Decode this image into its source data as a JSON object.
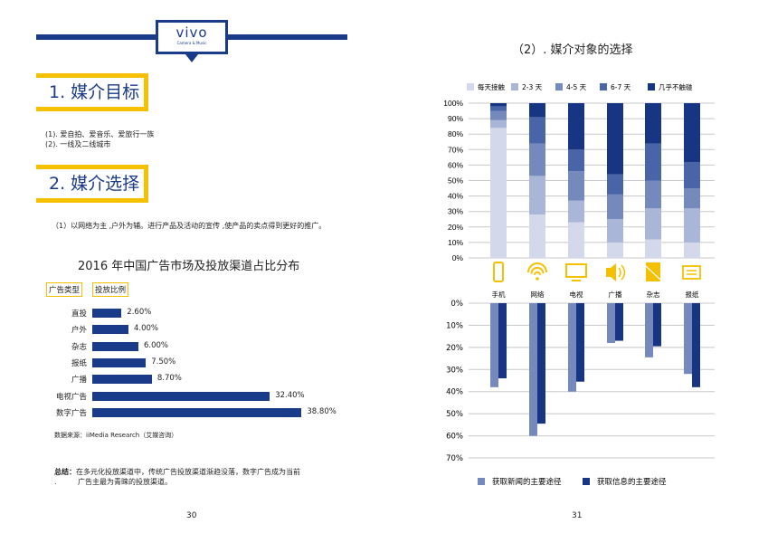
{
  "logo": {
    "brand": "vivo",
    "tagline": "Camera & Music"
  },
  "left": {
    "section1": "1. 媒介目标",
    "targets": [
      "(1). 爱自拍、爱音乐、爱旅行一族",
      "(2). 一线及二线城市"
    ],
    "section2": "2. 媒介选择",
    "strategy": "（1）以网络为主 ,户外为辅。进行产品及活动的宣传 ,使产品的卖点得到更好的推广。",
    "tag_type": "广告类型",
    "tag_ratio": "投放比例",
    "source": "数据来源：iiMedia Research（艾媒咨询）",
    "summary_label": "总结：",
    "summary_text": "在多元化投放渠道中，传统广告投放渠道渐趋没落，数字广告成为当前",
    "summary_text2": "广告主最为青睐的投放渠道。",
    "summary_dot": ".",
    "page": "30"
  },
  "right": {
    "title": "（2）. 媒介对象的选择",
    "page": "31"
  },
  "colors": {
    "navy": "#1a3a8a",
    "yellow": "#f5c000",
    "levels": [
      "#d3d9ea",
      "#a9b6d7",
      "#7689bd",
      "#4a64a8",
      "#173583"
    ],
    "news": "#7689bd",
    "info": "#173583"
  },
  "chart_data": [
    {
      "type": "bar",
      "orientation": "horizontal",
      "title": "2016 年中国广告市场及投放渠道占比分布",
      "categories": [
        "直投",
        "户外",
        "杂志",
        "报纸",
        "广播",
        "电视广告",
        "数字广告"
      ],
      "values": [
        2.6,
        4.0,
        6.0,
        7.5,
        8.7,
        32.4,
        38.8
      ],
      "labels": [
        "2.60%",
        "4.00%",
        "6.00%",
        "7.50%",
        "8.70%",
        "32.40%",
        "38.80%"
      ]
    },
    {
      "type": "bar",
      "stacked": true,
      "categories": [
        "手机",
        "网络",
        "电视",
        "广播",
        "杂志",
        "报纸"
      ],
      "icons": [
        "phone-icon",
        "wifi-icon",
        "tv-icon",
        "speaker-icon",
        "magazine-icon",
        "newspaper-icon"
      ],
      "yticks": [
        "0%",
        "10%",
        "20%",
        "30%",
        "40%",
        "50%",
        "60%",
        "70%",
        "80%",
        "90%",
        "100%"
      ],
      "ylim": [
        0,
        100
      ],
      "legend": "top",
      "series": [
        {
          "name": "每天接触",
          "values": [
            84,
            28,
            23,
            10,
            12,
            10
          ]
        },
        {
          "name": "2-3 天",
          "values": [
            5,
            25,
            14,
            15,
            20,
            22
          ]
        },
        {
          "name": "4-5 天",
          "values": [
            6,
            21,
            19,
            16,
            18,
            13
          ]
        },
        {
          "name": "6-7 天",
          "values": [
            3,
            17,
            14,
            13,
            24,
            17
          ]
        },
        {
          "name": "几乎不触碰",
          "values": [
            2,
            9,
            30,
            46,
            26,
            38
          ]
        }
      ]
    },
    {
      "type": "bar",
      "inverted": true,
      "categories": [
        "手机",
        "网络",
        "电视",
        "广播",
        "杂志",
        "报纸"
      ],
      "yticks": [
        "0%",
        "10%",
        "20%",
        "30%",
        "40%",
        "50%",
        "60%",
        "70%"
      ],
      "ylim": [
        0,
        70
      ],
      "legend": "bottom",
      "series": [
        {
          "name": "获取新闻的主要途径",
          "values": [
            38,
            60,
            40,
            18,
            24.5,
            32
          ]
        },
        {
          "name": "获取信息的主要途径",
          "values": [
            34,
            54.5,
            35.5,
            17,
            19.5,
            38
          ]
        }
      ]
    }
  ]
}
